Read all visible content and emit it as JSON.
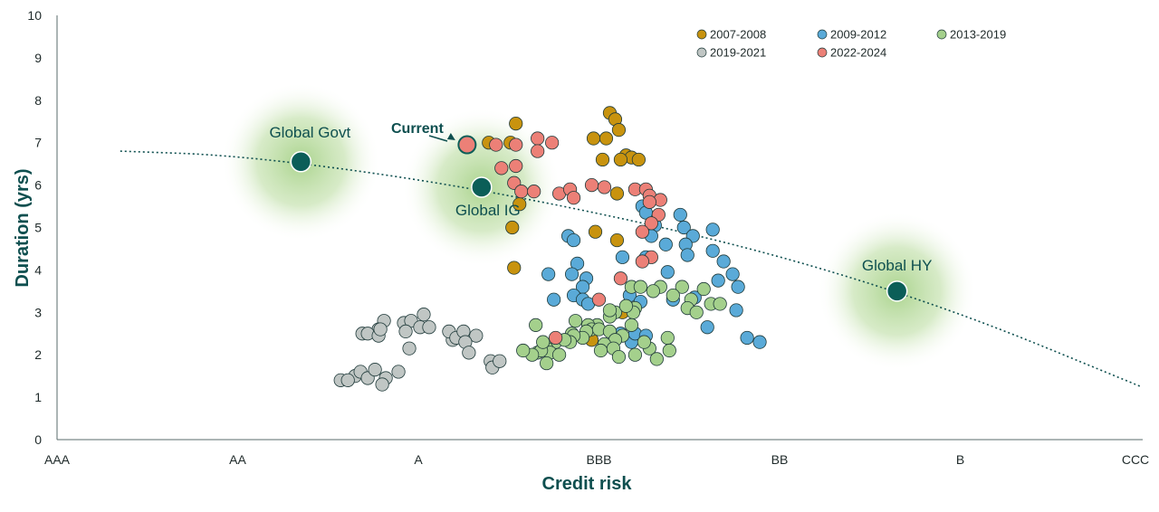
{
  "chart_data": {
    "type": "scatter",
    "title": "",
    "xlabel": "Credit risk",
    "ylabel": "Duration (yrs)",
    "x_categories": [
      "AAA",
      "AA",
      "A",
      "BBB",
      "BB",
      "B",
      "CCC"
    ],
    "ylim": [
      0,
      10
    ],
    "y_ticks": [
      "0",
      "1",
      "2",
      "3",
      "4",
      "5",
      "6",
      "7",
      "8",
      "9",
      "10"
    ],
    "grid": false,
    "legend_position": "top-right",
    "series": [
      {
        "name": "2007-2008",
        "color": "#c8930f",
        "points": [
          [
            2.54,
            7.45
          ],
          [
            2.51,
            7.0
          ],
          [
            2.39,
            7.0
          ],
          [
            2.56,
            5.55
          ],
          [
            2.52,
            5.0
          ],
          [
            2.53,
            4.05
          ],
          [
            3.06,
            7.7
          ],
          [
            3.09,
            7.55
          ],
          [
            2.97,
            7.1
          ],
          [
            3.11,
            7.3
          ],
          [
            3.04,
            7.1
          ],
          [
            3.02,
            6.6
          ],
          [
            3.15,
            6.7
          ],
          [
            3.18,
            6.65
          ],
          [
            3.12,
            6.6
          ],
          [
            3.22,
            6.6
          ],
          [
            3.1,
            5.8
          ],
          [
            2.98,
            4.9
          ],
          [
            3.1,
            4.7
          ],
          [
            3.13,
            3.0
          ],
          [
            2.96,
            2.35
          ]
        ]
      },
      {
        "name": "2009-2012",
        "color": "#5aaad8",
        "points": [
          [
            3.24,
            5.5
          ],
          [
            3.26,
            5.35
          ],
          [
            3.31,
            5.05
          ],
          [
            3.45,
            5.3
          ],
          [
            3.47,
            5.0
          ],
          [
            3.52,
            4.8
          ],
          [
            3.63,
            4.95
          ],
          [
            3.37,
            4.6
          ],
          [
            3.29,
            4.8
          ],
          [
            2.83,
            4.8
          ],
          [
            2.86,
            4.7
          ],
          [
            3.48,
            4.6
          ],
          [
            3.63,
            4.45
          ],
          [
            3.69,
            4.2
          ],
          [
            3.77,
            3.6
          ],
          [
            3.74,
            3.9
          ],
          [
            3.13,
            4.3
          ],
          [
            2.88,
            4.15
          ],
          [
            3.49,
            4.35
          ],
          [
            3.26,
            4.3
          ],
          [
            3.38,
            3.95
          ],
          [
            3.53,
            3.35
          ],
          [
            3.41,
            3.3
          ],
          [
            3.17,
            3.4
          ],
          [
            3.23,
            3.25
          ],
          [
            2.72,
            3.9
          ],
          [
            2.85,
            3.9
          ],
          [
            2.93,
            3.8
          ],
          [
            2.91,
            3.6
          ],
          [
            2.75,
            3.3
          ],
          [
            2.86,
            3.4
          ],
          [
            2.91,
            3.3
          ],
          [
            2.94,
            3.2
          ],
          [
            3.76,
            3.05
          ],
          [
            3.6,
            2.65
          ],
          [
            3.82,
            2.4
          ],
          [
            3.89,
            2.3
          ],
          [
            3.12,
            2.5
          ],
          [
            3.18,
            2.3
          ],
          [
            3.2,
            2.5
          ],
          [
            3.26,
            2.45
          ],
          [
            3.66,
            3.75
          ]
        ]
      },
      {
        "name": "2013-2019",
        "color": "#a4d08c",
        "points": [
          [
            3.18,
            3.6
          ],
          [
            3.23,
            3.6
          ],
          [
            3.34,
            3.6
          ],
          [
            3.46,
            3.6
          ],
          [
            3.58,
            3.55
          ],
          [
            3.3,
            3.5
          ],
          [
            3.41,
            3.4
          ],
          [
            3.51,
            3.3
          ],
          [
            3.62,
            3.2
          ],
          [
            3.67,
            3.2
          ],
          [
            3.2,
            3.1
          ],
          [
            3.49,
            3.1
          ],
          [
            3.54,
            3.0
          ],
          [
            3.19,
            3.0
          ],
          [
            3.09,
            3.0
          ],
          [
            3.06,
            2.9
          ],
          [
            2.99,
            2.7
          ],
          [
            2.87,
            2.8
          ],
          [
            2.94,
            2.7
          ],
          [
            2.96,
            2.6
          ],
          [
            2.93,
            2.55
          ],
          [
            2.85,
            2.5
          ],
          [
            2.91,
            2.4
          ],
          [
            2.86,
            2.45
          ],
          [
            2.84,
            2.3
          ],
          [
            2.76,
            2.3
          ],
          [
            2.71,
            2.15
          ],
          [
            2.66,
            2.05
          ],
          [
            2.73,
            2.05
          ],
          [
            2.68,
            2.1
          ],
          [
            2.63,
            2.0
          ],
          [
            2.58,
            2.1
          ],
          [
            3.0,
            2.6
          ],
          [
            3.06,
            2.55
          ],
          [
            3.13,
            2.45
          ],
          [
            3.09,
            2.35
          ],
          [
            3.03,
            2.25
          ],
          [
            3.01,
            2.1
          ],
          [
            3.08,
            2.15
          ],
          [
            3.11,
            1.95
          ],
          [
            3.2,
            2.0
          ],
          [
            3.28,
            2.15
          ],
          [
            3.38,
            2.4
          ],
          [
            3.39,
            2.1
          ],
          [
            3.32,
            1.9
          ],
          [
            2.71,
            1.8
          ],
          [
            3.06,
            3.05
          ],
          [
            2.65,
            2.7
          ],
          [
            2.69,
            2.3
          ],
          [
            2.81,
            2.35
          ],
          [
            2.78,
            2.0
          ],
          [
            3.15,
            3.15
          ],
          [
            3.25,
            2.3
          ],
          [
            3.18,
            2.7
          ]
        ]
      },
      {
        "name": "2019-2021",
        "color": "#c0c6c4",
        "points": [
          [
            1.81,
            2.8
          ],
          [
            1.78,
            2.6
          ],
          [
            1.92,
            2.75
          ],
          [
            1.96,
            2.8
          ],
          [
            2.01,
            2.65
          ],
          [
            2.06,
            2.65
          ],
          [
            2.03,
            2.95
          ],
          [
            2.19,
            2.35
          ],
          [
            2.17,
            2.55
          ],
          [
            2.21,
            2.4
          ],
          [
            2.25,
            2.55
          ],
          [
            2.32,
            2.45
          ],
          [
            1.69,
            2.5
          ],
          [
            1.72,
            2.5
          ],
          [
            1.78,
            2.45
          ],
          [
            1.79,
            2.6
          ],
          [
            1.93,
            2.55
          ],
          [
            1.95,
            2.15
          ],
          [
            2.26,
            2.3
          ],
          [
            2.28,
            2.05
          ],
          [
            2.4,
            1.85
          ],
          [
            2.41,
            1.7
          ],
          [
            1.65,
            1.5
          ],
          [
            1.68,
            1.6
          ],
          [
            1.72,
            1.45
          ],
          [
            1.76,
            1.65
          ],
          [
            1.82,
            1.45
          ],
          [
            1.89,
            1.6
          ],
          [
            1.8,
            1.3
          ],
          [
            1.57,
            1.4
          ],
          [
            1.61,
            1.4
          ],
          [
            2.45,
            1.85
          ]
        ]
      },
      {
        "name": "2022-2024",
        "color": "#ec8077",
        "points": [
          [
            2.43,
            6.95
          ],
          [
            2.54,
            6.95
          ],
          [
            2.66,
            7.1
          ],
          [
            2.74,
            7.0
          ],
          [
            2.66,
            6.8
          ],
          [
            2.46,
            6.4
          ],
          [
            2.54,
            6.45
          ],
          [
            2.53,
            6.05
          ],
          [
            2.57,
            5.85
          ],
          [
            2.64,
            5.85
          ],
          [
            2.78,
            5.8
          ],
          [
            2.84,
            5.9
          ],
          [
            2.96,
            6.0
          ],
          [
            3.03,
            5.95
          ],
          [
            3.2,
            5.9
          ],
          [
            3.26,
            5.9
          ],
          [
            3.28,
            5.75
          ],
          [
            3.34,
            5.65
          ],
          [
            3.28,
            5.6
          ],
          [
            3.33,
            5.3
          ],
          [
            3.29,
            5.1
          ],
          [
            3.24,
            4.9
          ],
          [
            3.29,
            4.3
          ],
          [
            3.24,
            4.2
          ],
          [
            3.12,
            3.8
          ],
          [
            3.0,
            3.3
          ],
          [
            2.76,
            2.4
          ],
          [
            2.86,
            5.7
          ]
        ]
      }
    ],
    "benchmarks": [
      {
        "label": "Global Govt",
        "x": 1.35,
        "y": 6.55
      },
      {
        "label": "Global IG",
        "x": 2.35,
        "y": 5.95
      },
      {
        "label": "Global HY",
        "x": 4.65,
        "y": 3.5
      }
    ],
    "current": {
      "label": "Current",
      "x": 2.27,
      "y": 6.95,
      "color": "#ec8077"
    },
    "trend_line": {
      "style": "dotted",
      "points": [
        [
          0.35,
          6.8
        ],
        [
          1.0,
          6.7
        ],
        [
          2.0,
          6.15
        ],
        [
          3.0,
          5.35
        ],
        [
          4.0,
          4.35
        ],
        [
          5.0,
          3.0
        ],
        [
          6.0,
          1.25
        ]
      ]
    },
    "colors": {
      "axis": "#5a6b6b",
      "title": "#0e4f4f",
      "benchmark": "#0b5e58",
      "glow": "#9ccc7a",
      "outline": "#1f3a3a"
    }
  }
}
